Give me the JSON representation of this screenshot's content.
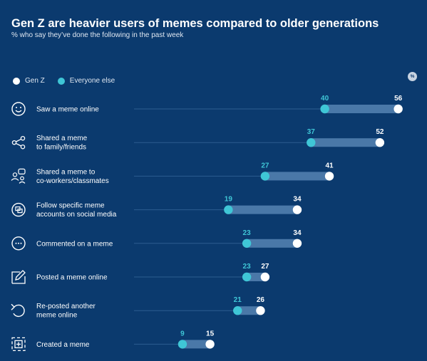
{
  "title": "Gen Z are heavier users of memes compared to older generations",
  "subtitle": "% who say they’ve done the following in the past week",
  "legend": {
    "genz": "Gen Z",
    "others": "Everyone else"
  },
  "percent_badge": "%",
  "colors": {
    "background": "#0b3a6e",
    "genz": "#ffffff",
    "others": "#3fc6d6",
    "connector": "#4a78a8",
    "baseline": "#2d5d90"
  },
  "chart_data": {
    "type": "dot",
    "categories": [
      [
        "Saw a meme online"
      ],
      [
        "Shared a meme",
        "to family/friends"
      ],
      [
        "Shared a meme to",
        "co-workers/classmates"
      ],
      [
        "Follow specific meme",
        "accounts on social media"
      ],
      [
        "Commented on a meme"
      ],
      [
        "Posted a meme online"
      ],
      [
        "Re-posted another",
        "meme online"
      ],
      [
        "Created a meme"
      ]
    ],
    "icons": [
      "smiley-icon",
      "share-icon",
      "people-chat-icon",
      "follow-accounts-icon",
      "comment-icon",
      "edit-pencil-icon",
      "repost-arrow-icon",
      "add-frame-icon"
    ],
    "series": [
      {
        "name": "Gen Z",
        "values": [
          56,
          52,
          41,
          34,
          34,
          27,
          26,
          15
        ]
      },
      {
        "name": "Everyone else",
        "values": [
          40,
          37,
          27,
          19,
          23,
          23,
          21,
          9
        ]
      }
    ],
    "xlim": [
      0,
      56
    ]
  }
}
